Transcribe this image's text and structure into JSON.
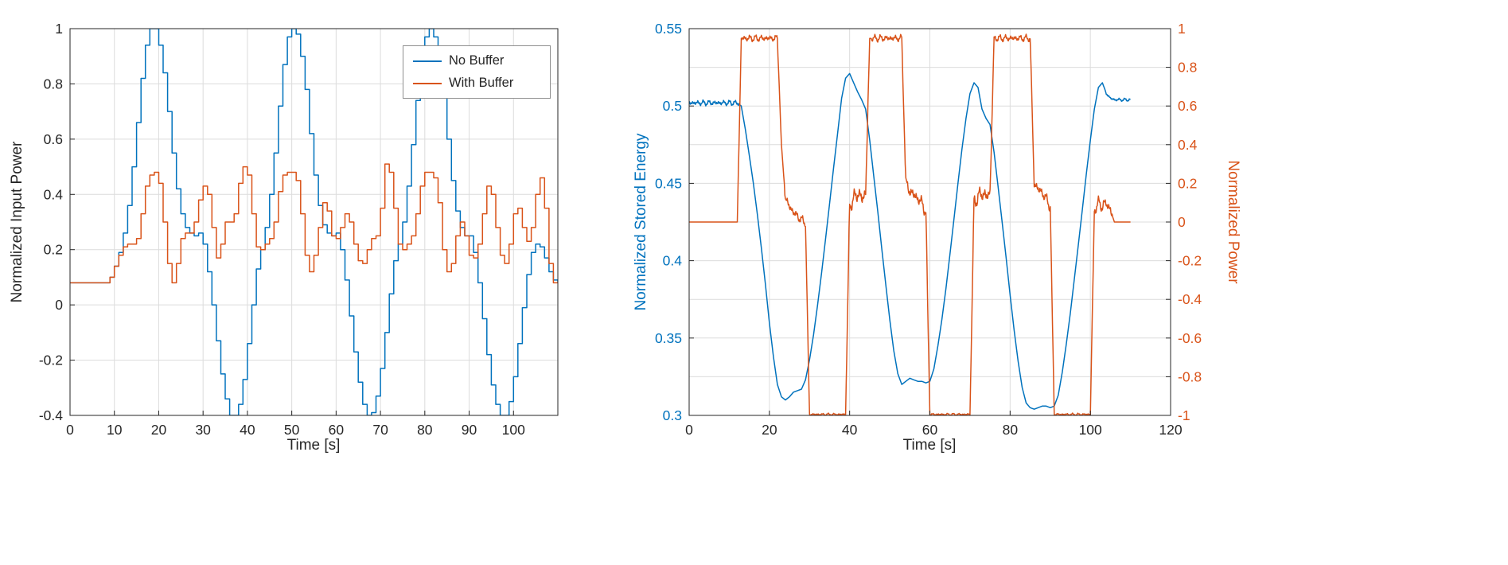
{
  "figure": {
    "background": "#ffffff",
    "text_color": "#262626",
    "grid_color": "#dcdcdc"
  },
  "chart_data": [
    {
      "id": "left",
      "type": "line",
      "title": "",
      "xlabel": "Time [s]",
      "ylabel": "Normalized Input Power",
      "xlim": [
        0,
        110
      ],
      "ylim": [
        -0.4,
        1
      ],
      "xticks": [
        0,
        10,
        20,
        30,
        40,
        50,
        60,
        70,
        80,
        90,
        100
      ],
      "yticks": [
        -0.4,
        -0.2,
        0,
        0.2,
        0.4,
        0.6,
        0.8,
        1
      ],
      "grid": true,
      "legend": {
        "visible": true,
        "position": "northeast-inside"
      },
      "series": [
        {
          "name": "No Buffer",
          "color": "#0072BD",
          "axis": "left",
          "step": true,
          "x_start": 0,
          "x_step": 1,
          "y": [
            0.08,
            0.08,
            0.08,
            0.08,
            0.08,
            0.08,
            0.08,
            0.08,
            0.08,
            0.1,
            0.14,
            0.19,
            0.26,
            0.36,
            0.5,
            0.66,
            0.82,
            0.94,
            1.0,
            1.0,
            0.94,
            0.84,
            0.7,
            0.55,
            0.42,
            0.33,
            0.28,
            0.26,
            0.25,
            0.26,
            0.22,
            0.12,
            0.0,
            -0.13,
            -0.25,
            -0.34,
            -0.4,
            -0.4,
            -0.36,
            -0.27,
            -0.14,
            0.0,
            0.13,
            0.2,
            0.28,
            0.4,
            0.55,
            0.72,
            0.87,
            0.97,
            1.0,
            0.98,
            0.9,
            0.78,
            0.62,
            0.47,
            0.36,
            0.29,
            0.26,
            0.25,
            0.26,
            0.2,
            0.09,
            -0.04,
            -0.17,
            -0.28,
            -0.36,
            -0.4,
            -0.39,
            -0.33,
            -0.23,
            -0.1,
            0.04,
            0.16,
            0.22,
            0.3,
            0.43,
            0.58,
            0.74,
            0.89,
            0.97,
            1.0,
            0.97,
            0.88,
            0.75,
            0.6,
            0.45,
            0.34,
            0.28,
            0.25,
            0.25,
            0.19,
            0.08,
            -0.05,
            -0.18,
            -0.29,
            -0.36,
            -0.4,
            -0.4,
            -0.35,
            -0.26,
            -0.14,
            -0.01,
            0.11,
            0.19,
            0.22,
            0.21,
            0.17,
            0.12,
            0.09,
            0.08
          ]
        },
        {
          "name": "With Buffer",
          "color": "#D95319",
          "axis": "left",
          "step": true,
          "x_start": 0,
          "x_step": 1,
          "y": [
            0.08,
            0.08,
            0.08,
            0.08,
            0.08,
            0.08,
            0.08,
            0.08,
            0.08,
            0.1,
            0.14,
            0.18,
            0.21,
            0.22,
            0.22,
            0.24,
            0.33,
            0.43,
            0.47,
            0.48,
            0.44,
            0.3,
            0.15,
            0.08,
            0.15,
            0.24,
            0.26,
            0.26,
            0.3,
            0.38,
            0.43,
            0.4,
            0.28,
            0.17,
            0.22,
            0.3,
            0.3,
            0.33,
            0.44,
            0.5,
            0.47,
            0.33,
            0.21,
            0.2,
            0.22,
            0.24,
            0.3,
            0.41,
            0.47,
            0.48,
            0.48,
            0.45,
            0.33,
            0.18,
            0.12,
            0.18,
            0.28,
            0.37,
            0.34,
            0.25,
            0.24,
            0.28,
            0.33,
            0.3,
            0.22,
            0.16,
            0.15,
            0.2,
            0.24,
            0.25,
            0.35,
            0.51,
            0.48,
            0.35,
            0.22,
            0.2,
            0.22,
            0.25,
            0.33,
            0.43,
            0.48,
            0.48,
            0.46,
            0.37,
            0.2,
            0.12,
            0.15,
            0.25,
            0.3,
            0.25,
            0.18,
            0.17,
            0.22,
            0.33,
            0.43,
            0.4,
            0.28,
            0.18,
            0.15,
            0.22,
            0.33,
            0.35,
            0.28,
            0.23,
            0.28,
            0.4,
            0.46,
            0.35,
            0.15,
            0.08,
            0.08
          ]
        }
      ]
    },
    {
      "id": "right",
      "type": "line-dual-axis",
      "title": "",
      "xlabel": "Time [s]",
      "ylabel_left": "Normalized Stored Energy",
      "ylabel_right": "Normalized Power",
      "xlim": [
        0,
        120
      ],
      "ylim_left": [
        0.3,
        0.55
      ],
      "ylim_right": [
        -1,
        1
      ],
      "xticks": [
        0,
        20,
        40,
        60,
        80,
        100,
        120
      ],
      "yticks_left": [
        0.3,
        0.35,
        0.4,
        0.45,
        0.5,
        0.55
      ],
      "yticks_right": [
        -1,
        -0.8,
        -0.6,
        -0.4,
        -0.2,
        0,
        0.2,
        0.4,
        0.6,
        0.8,
        1
      ],
      "axis_color_left": "#0072BD",
      "axis_color_right": "#D95319",
      "grid": true,
      "grid_y": "right",
      "series": [
        {
          "name": "Normalized Stored Energy",
          "color": "#0072BD",
          "axis": "left",
          "step": false,
          "x_start": 0,
          "x_step": 1,
          "noise": [
            [
              0,
              12.7,
              0.0018
            ],
            [
              103.8,
              110,
              0.001
            ]
          ],
          "y": [
            0.502,
            0.502,
            0.502,
            0.502,
            0.502,
            0.502,
            0.502,
            0.502,
            0.502,
            0.502,
            0.502,
            0.502,
            0.502,
            0.5,
            0.485,
            0.468,
            0.45,
            0.43,
            0.408,
            0.385,
            0.36,
            0.338,
            0.32,
            0.312,
            0.31,
            0.312,
            0.315,
            0.316,
            0.317,
            0.323,
            0.336,
            0.352,
            0.371,
            0.392,
            0.414,
            0.437,
            0.46,
            0.482,
            0.505,
            0.518,
            0.521,
            0.515,
            0.509,
            0.504,
            0.498,
            0.478,
            0.455,
            0.432,
            0.408,
            0.385,
            0.362,
            0.342,
            0.327,
            0.32,
            0.322,
            0.324,
            0.323,
            0.322,
            0.322,
            0.321,
            0.322,
            0.33,
            0.345,
            0.362,
            0.382,
            0.404,
            0.427,
            0.45,
            0.472,
            0.492,
            0.508,
            0.515,
            0.512,
            0.498,
            0.492,
            0.488,
            0.47,
            0.448,
            0.425,
            0.402,
            0.378,
            0.355,
            0.335,
            0.318,
            0.308,
            0.305,
            0.304,
            0.305,
            0.306,
            0.306,
            0.305,
            0.306,
            0.313,
            0.328,
            0.346,
            0.366,
            0.388,
            0.41,
            0.433,
            0.456,
            0.478,
            0.498,
            0.512,
            0.515,
            0.508,
            0.505,
            0.504,
            0.504,
            0.504,
            0.504,
            0.504
          ]
        },
        {
          "name": "Normalized Power",
          "color": "#D95319",
          "axis": "right",
          "step": false,
          "x_start": 0,
          "x_step": 1,
          "noise": [
            [
              13,
              22.4,
              0.018
            ],
            [
              23.8,
              29,
              0.025
            ],
            [
              30,
              39.5,
              0.006
            ],
            [
              39.8,
              44.6,
              0.04
            ],
            [
              45.3,
              53.6,
              0.018
            ],
            [
              53.8,
              59.4,
              0.035
            ],
            [
              60,
              70.5,
              0.006
            ],
            [
              70.8,
              75.6,
              0.04
            ],
            [
              76,
              85.6,
              0.018
            ],
            [
              85.8,
              90.4,
              0.03
            ],
            [
              91,
              100.5,
              0.006
            ],
            [
              100.8,
              105.5,
              0.03
            ]
          ],
          "y": [
            0,
            0,
            0,
            0,
            0,
            0,
            0,
            0,
            0,
            0,
            0,
            0,
            0,
            0.95,
            0.95,
            0.95,
            0.95,
            0.95,
            0.95,
            0.95,
            0.95,
            0.95,
            0.95,
            0.4,
            0.12,
            0.08,
            0.05,
            0.03,
            0.01,
            0.0,
            -0.995,
            -0.995,
            -0.995,
            -0.995,
            -0.995,
            -0.995,
            -0.995,
            -0.995,
            -0.995,
            -0.995,
            0.08,
            0.12,
            0.15,
            0.12,
            0.15,
            0.95,
            0.95,
            0.95,
            0.95,
            0.95,
            0.95,
            0.95,
            0.95,
            0.95,
            0.2,
            0.16,
            0.14,
            0.12,
            0.1,
            0.05,
            -0.995,
            -0.995,
            -0.995,
            -0.995,
            -0.995,
            -0.995,
            -0.995,
            -0.995,
            -0.995,
            -0.995,
            -0.995,
            0.1,
            0.13,
            0.15,
            0.13,
            0.15,
            0.95,
            0.95,
            0.95,
            0.95,
            0.95,
            0.95,
            0.95,
            0.95,
            0.95,
            0.95,
            0.2,
            0.17,
            0.15,
            0.12,
            0.08,
            -0.995,
            -0.995,
            -0.995,
            -0.995,
            -0.995,
            -0.995,
            -0.995,
            -0.995,
            -0.995,
            -0.995,
            0.06,
            0.1,
            0.08,
            0.1,
            0.06,
            0.0,
            0.0,
            0.0,
            0.0,
            0.0
          ]
        }
      ]
    }
  ]
}
